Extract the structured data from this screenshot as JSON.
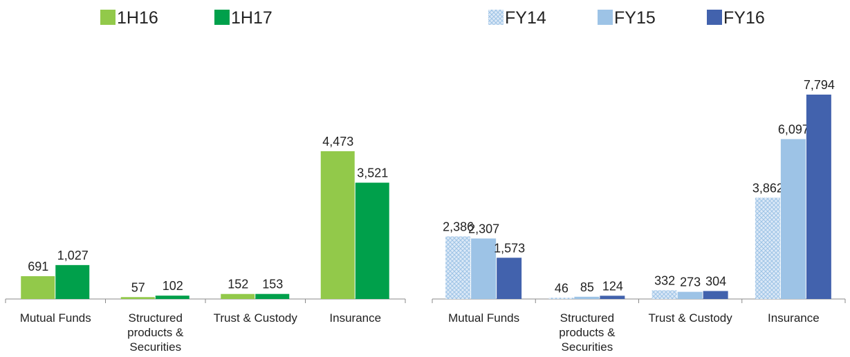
{
  "chart_data": [
    {
      "type": "bar",
      "categories": [
        "Mutual Funds",
        "Structured products & Securities",
        "Trust & Custody",
        "Insurance"
      ],
      "series": [
        {
          "name": "1H16",
          "color": "#92c94a",
          "values": [
            691,
            57,
            152,
            4473
          ],
          "value_labels": [
            "691",
            "57",
            "152",
            "4,473"
          ]
        },
        {
          "name": "1H17",
          "color": "#00a04b",
          "values": [
            1027,
            102,
            153,
            3521
          ],
          "value_labels": [
            "1,027",
            "102",
            "153",
            "3,521"
          ]
        }
      ]
    },
    {
      "type": "bar",
      "categories": [
        "Mutual Funds",
        "Structured products & Securities",
        "Trust & Custody",
        "Insurance"
      ],
      "series": [
        {
          "name": "FY14",
          "color": "#c5daf0",
          "values": [
            2386,
            46,
            332,
            3862
          ],
          "value_labels": [
            "2,386",
            "46",
            "332",
            "3,862"
          ]
        },
        {
          "name": "FY15",
          "color": "#9dc3e6",
          "values": [
            2307,
            85,
            273,
            6097
          ],
          "value_labels": [
            "2,307",
            "85",
            "273",
            "6,097"
          ]
        },
        {
          "name": "FY16",
          "color": "#4262ad",
          "values": [
            1573,
            124,
            304,
            7794
          ],
          "value_labels": [
            "1,573",
            "124",
            "304",
            "7,794"
          ]
        }
      ]
    }
  ]
}
